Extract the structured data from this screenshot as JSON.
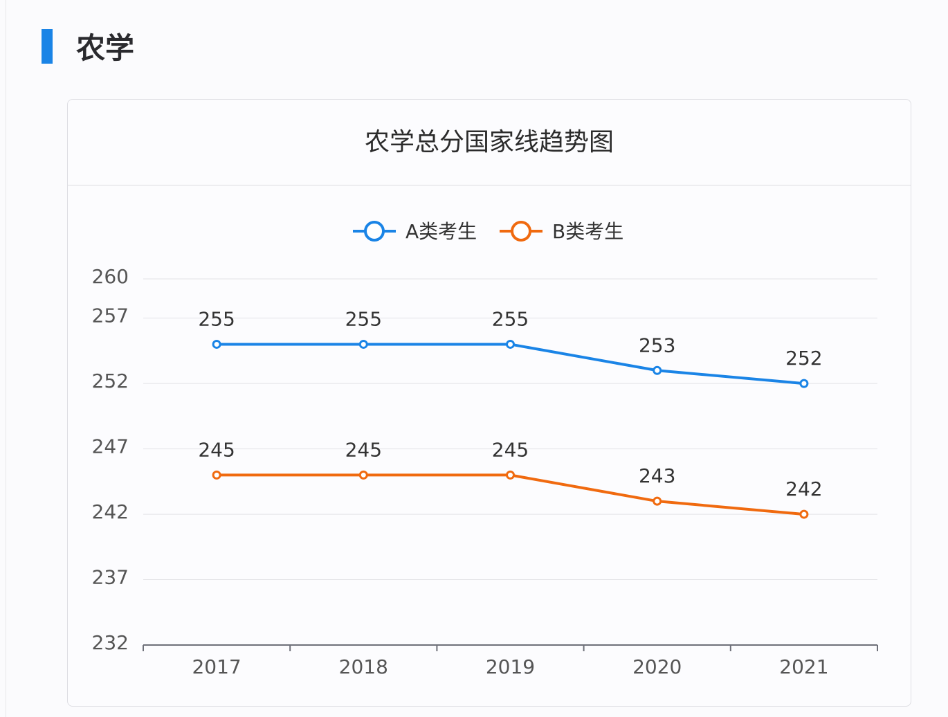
{
  "section": {
    "title": "农学",
    "accent": "#1a84e6"
  },
  "chart_data": {
    "type": "line",
    "title": "农学总分国家线趋势图",
    "categories": [
      "2017",
      "2018",
      "2019",
      "2020",
      "2021"
    ],
    "y_ticks": [
      232,
      237,
      242,
      247,
      252,
      257,
      260
    ],
    "ylim": [
      232,
      260
    ],
    "grid": true,
    "legend_position": "top",
    "series": [
      {
        "name": "A类考生",
        "color": "#1a84e6",
        "values": [
          255,
          255,
          255,
          253,
          252
        ]
      },
      {
        "name": "B类考生",
        "color": "#f06a0f",
        "values": [
          245,
          245,
          245,
          243,
          242
        ]
      }
    ]
  }
}
